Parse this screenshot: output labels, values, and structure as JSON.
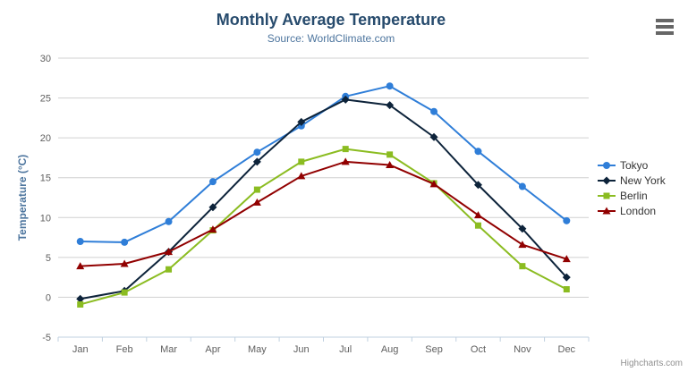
{
  "header": {
    "menu_icon": "hamburger-icon"
  },
  "credits": {
    "label": "Highcharts.com"
  },
  "chart_data": {
    "type": "line",
    "title": "Monthly Average Temperature",
    "subtitle": "Source: WorldClimate.com",
    "xlabel": "",
    "ylabel": "Temperature (°C)",
    "ylim": [
      -5,
      30
    ],
    "ytick_interval": 5,
    "grid": true,
    "legend_position": "right-middle",
    "categories": [
      "Jan",
      "Feb",
      "Mar",
      "Apr",
      "May",
      "Jun",
      "Jul",
      "Aug",
      "Sep",
      "Oct",
      "Nov",
      "Dec"
    ],
    "series": [
      {
        "name": "Tokyo",
        "color": "#2f7ed8",
        "marker": "circle",
        "values": [
          7.0,
          6.9,
          9.5,
          14.5,
          18.2,
          21.5,
          25.2,
          26.5,
          23.3,
          18.3,
          13.9,
          9.6
        ]
      },
      {
        "name": "New York",
        "color": "#0d233a",
        "marker": "diamond",
        "values": [
          -0.2,
          0.8,
          5.7,
          11.3,
          17.0,
          22.0,
          24.8,
          24.1,
          20.1,
          14.1,
          8.6,
          2.5
        ]
      },
      {
        "name": "Berlin",
        "color": "#8bbc21",
        "marker": "square",
        "values": [
          -0.9,
          0.6,
          3.5,
          8.4,
          13.5,
          17.0,
          18.6,
          17.9,
          14.3,
          9.0,
          3.9,
          1.0
        ]
      },
      {
        "name": "London",
        "color": "#910000",
        "marker": "triangle",
        "values": [
          3.9,
          4.2,
          5.7,
          8.5,
          11.9,
          15.2,
          17.0,
          16.6,
          14.2,
          10.3,
          6.6,
          4.8
        ]
      }
    ],
    "theme": {
      "title_color": "#274b6d",
      "subtitle_color": "#4d759e",
      "axis_label_color": "#606060",
      "axis_title_color": "#4d759e",
      "legend_text_color": "#333333",
      "grid_line_color": "#d0d0d0",
      "axis_line_color": "#c0d0e0",
      "credits_color": "#909090",
      "menu_icon_color": "#666666"
    }
  }
}
